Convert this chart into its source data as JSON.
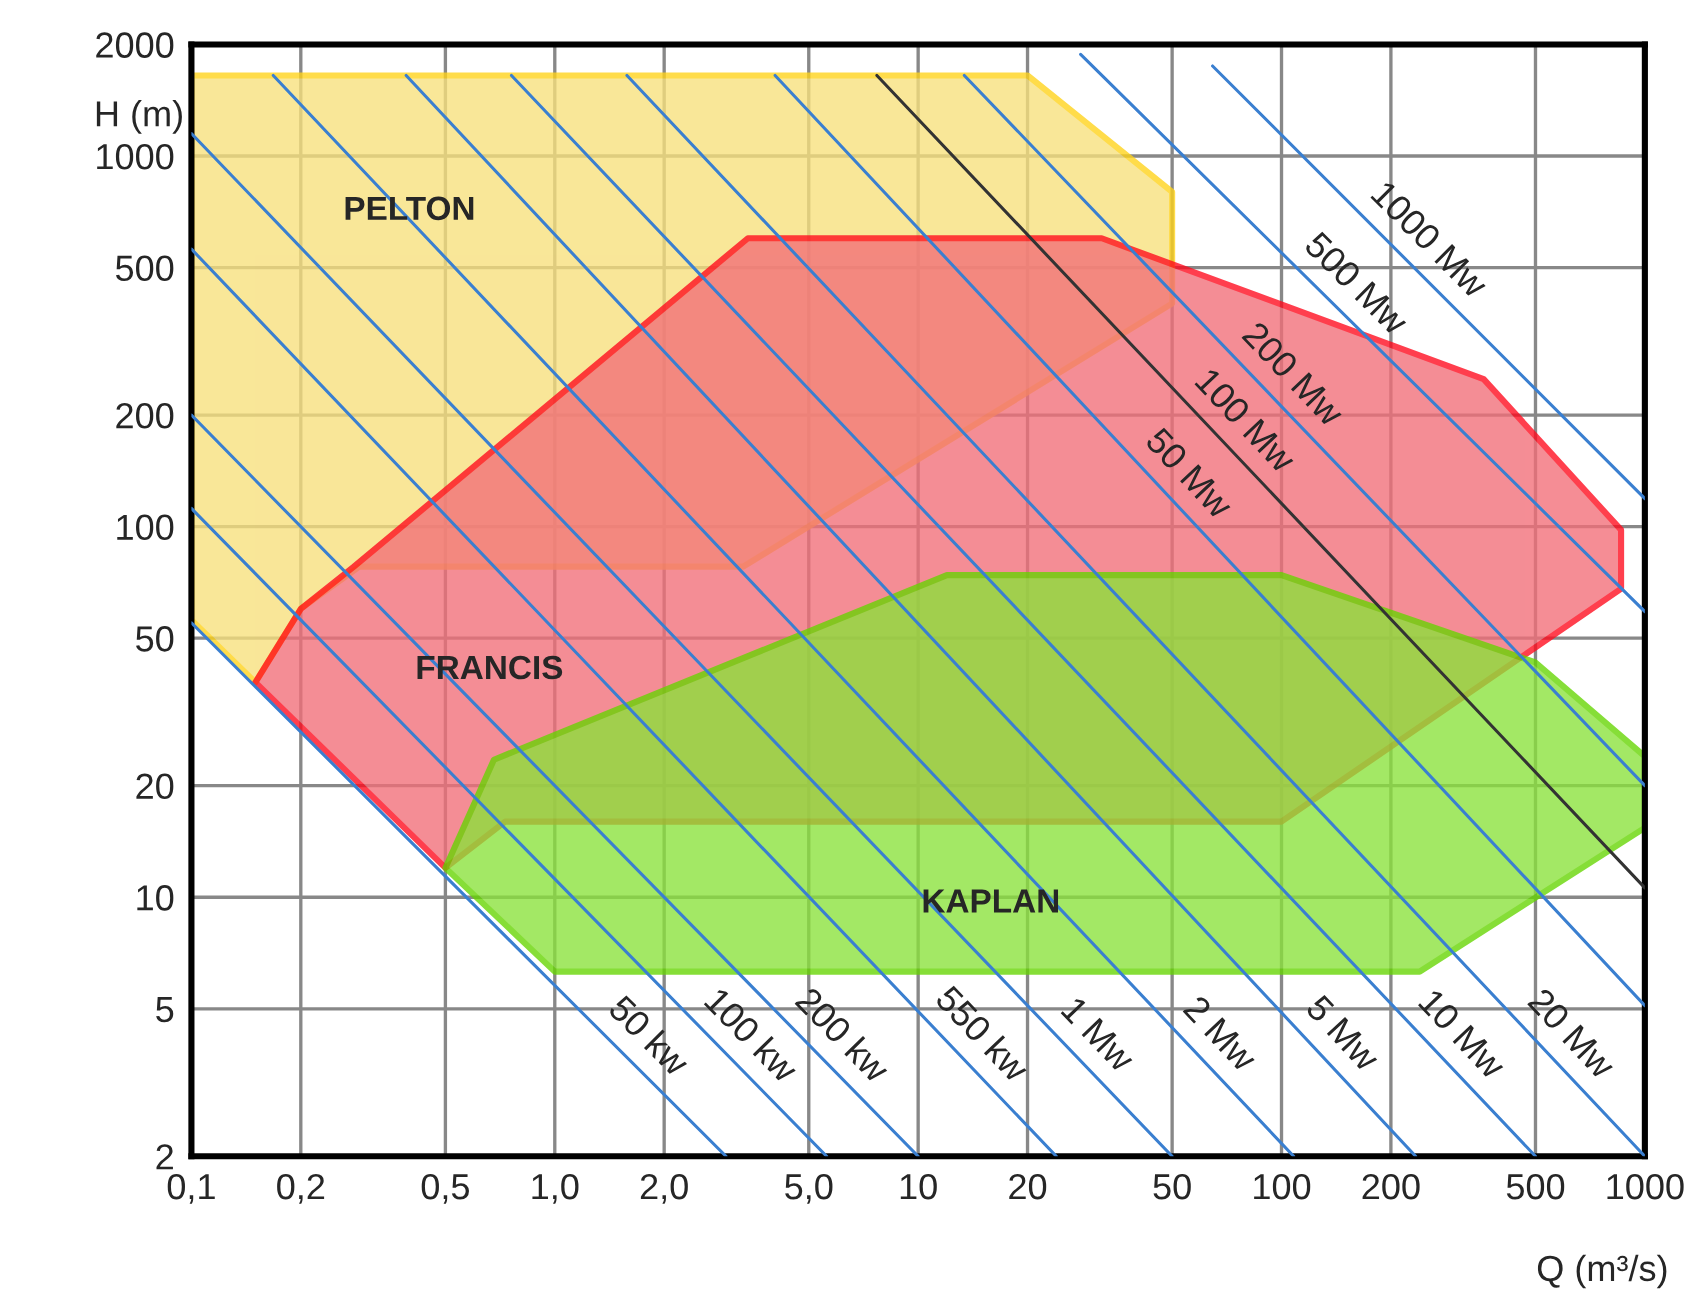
{
  "chart_data": {
    "type": "line",
    "xlabel": "Q (m³/s)",
    "ylabel": "H (m)",
    "log": "xy",
    "grid": true,
    "legend": false,
    "xlim": [
      0.1,
      1000
    ],
    "ylim": [
      2,
      2000
    ],
    "xticks": [
      {
        "value": 0.1,
        "label": "0,1"
      },
      {
        "value": 0.2,
        "label": "0,2"
      },
      {
        "value": 0.5,
        "label": "0,5"
      },
      {
        "value": 1,
        "label": "1,0"
      },
      {
        "value": 2,
        "label": "2,0"
      },
      {
        "value": 5,
        "label": "5,0"
      },
      10,
      20,
      50,
      100,
      200,
      500,
      1000
    ],
    "yticks": [
      2,
      5,
      10,
      20,
      50,
      100,
      200,
      500,
      1000,
      2000
    ],
    "series": [
      {
        "type": "area",
        "name": "PELTON",
        "color": "#f8e07c",
        "x": [
          0.1,
          20,
          50,
          50,
          3.3,
          0.29,
          0.2,
          0.15,
          0.1,
          0.1
        ],
        "values": [
          1650,
          1650,
          800,
          400,
          78,
          78,
          60,
          38,
          56,
          1650
        ]
      },
      {
        "type": "area",
        "name": "FRANCIS",
        "color": "#f26e78",
        "x": [
          0.15,
          0.2,
          0.28,
          3.4,
          32,
          360,
          860,
          860,
          100,
          0.73,
          0.5,
          0.15
        ],
        "values": [
          38,
          60,
          78,
          600,
          600,
          250,
          98,
          68,
          16,
          16,
          12,
          38
        ]
      },
      {
        "type": "area",
        "name": "KAPLAN",
        "color": "#8ae23a",
        "x": [
          0.5,
          0.68,
          12,
          100,
          500,
          1000,
          1000,
          240,
          1.0,
          0.5
        ],
        "values": [
          12,
          23.5,
          74,
          74,
          43,
          24,
          15.4,
          6.3,
          6.3,
          12
        ]
      },
      {
        "type": "line",
        "name": "50 kw",
        "color": "#3a7fd0",
        "x": [
          0.1,
          2.96
        ],
        "values": [
          55,
          2
        ]
      },
      {
        "type": "line",
        "name": "100 kw",
        "color": "#3a7fd0",
        "x": [
          0.1,
          5.6
        ],
        "values": [
          112,
          2
        ]
      },
      {
        "type": "line",
        "name": "200 kw",
        "color": "#3a7fd0",
        "x": [
          0.1,
          10
        ],
        "values": [
          200,
          2
        ]
      },
      {
        "type": "line",
        "name": "550 kw",
        "color": "#3a7fd0",
        "x": [
          0.1,
          24
        ],
        "values": [
          561,
          2
        ]
      },
      {
        "type": "line",
        "name": "1 Mw",
        "color": "#3a7fd0",
        "x": [
          0.1,
          50
        ],
        "values": [
          1150,
          2
        ]
      },
      {
        "type": "line",
        "name": "2 Mw",
        "color": "#3a7fd0",
        "x": [
          0.168,
          108
        ],
        "values": [
          1650,
          2
        ]
      },
      {
        "type": "line",
        "name": "5 Mw",
        "color": "#3a7fd0",
        "x": [
          0.39,
          234
        ],
        "values": [
          1650,
          2
        ]
      },
      {
        "type": "line",
        "name": "10 Mw",
        "color": "#3a7fd0",
        "x": [
          0.76,
          500
        ],
        "values": [
          1650,
          2
        ]
      },
      {
        "type": "line",
        "name": "20 Mw",
        "color": "#3a7fd0",
        "x": [
          1.58,
          1000
        ],
        "values": [
          1650,
          2
        ]
      },
      {
        "type": "line",
        "name": "50 Mw",
        "color": "#3a7fd0",
        "x": [
          4.04,
          1000
        ],
        "values": [
          1650,
          5.1
        ]
      },
      {
        "type": "line",
        "name": "100 Mw",
        "color": "#333333",
        "x": [
          7.7,
          1000
        ],
        "values": [
          1650,
          10.6
        ]
      },
      {
        "type": "line",
        "name": "200 Mw",
        "color": "#3a7fd0",
        "x": [
          13.4,
          1000
        ],
        "values": [
          1650,
          20
        ]
      },
      {
        "type": "line",
        "name": "500 Mw",
        "color": "#3a7fd0",
        "x": [
          28,
          1000
        ],
        "values": [
          1880,
          59
        ]
      },
      {
        "type": "line",
        "name": "1000 Mw",
        "color": "#3a7fd0",
        "x": [
          64.6,
          1000
        ],
        "values": [
          1750,
          119
        ]
      }
    ]
  }
}
